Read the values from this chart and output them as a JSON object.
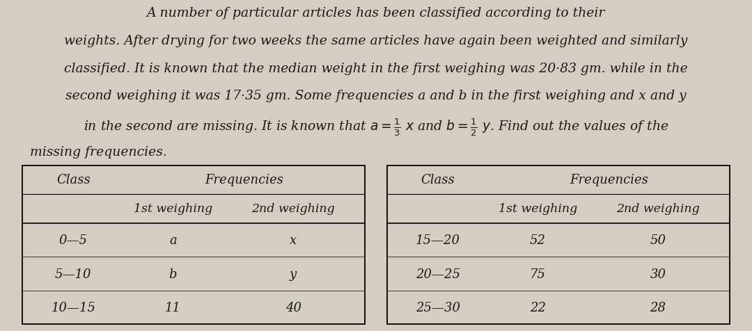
{
  "paragraph_line1": "A number of particular articles has been classified according to their",
  "paragraph_line2": "weights. After drying for two weeks the same articles have again been weighted and similarly",
  "paragraph_line3": "classified. It is known that the median weight in the first weighing was 20·83 gm. while in the",
  "paragraph_line4": "second weighing it was 17·35 gm. Some frequencies a and b in the first weighing and x and y",
  "paragraph_line5": "in the second are missing. It is known that $a =\\frac{1}{3}\\ x$ and $b =\\frac{1}{2}\\ y$. Find out the values of the",
  "paragraph_line6": "missing frequencies.",
  "bg_color": "#d4cdc2",
  "text_color": "#1a1a1a",
  "font_size_para": 13.5,
  "font_size_table_header": 13.0,
  "font_size_table_data": 13.0,
  "left_table_rows": [
    [
      "0—5",
      "a",
      "x"
    ],
    [
      "5—10",
      "b",
      "y"
    ],
    [
      "10—15",
      "11",
      "40"
    ]
  ],
  "right_table_rows": [
    [
      "15—20",
      "52",
      "50"
    ],
    [
      "20—25",
      "75",
      "30"
    ],
    [
      "25—30",
      "22",
      "28"
    ]
  ]
}
